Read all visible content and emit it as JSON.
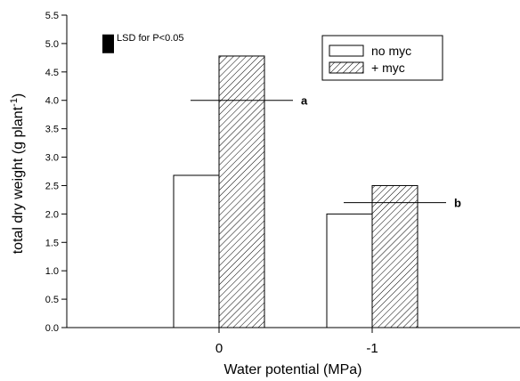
{
  "chart_data": {
    "type": "bar",
    "categories": [
      "0",
      "-1"
    ],
    "series": [
      {
        "name": "no myc",
        "values": [
          2.68,
          2.0
        ],
        "fill": "open"
      },
      {
        "name": "+ myc",
        "values": [
          4.78,
          2.5
        ],
        "fill": "hatched"
      }
    ],
    "xlabel": "Water potential  (MPa)",
    "ylabel_main": "total dry weight (g plant",
    "ylabel_sup": "-1",
    "ylabel_close": ")",
    "ylim": [
      0,
      5.5
    ],
    "yticks": [
      "0.0",
      "0.5",
      "1.0",
      "1.5",
      "2.0",
      "2.5",
      "3.0",
      "3.5",
      "4.0",
      "4.5",
      "5.0",
      "5.5"
    ],
    "lsd": {
      "label": "LSD for P<0.05",
      "value": 0.33,
      "top": 5.16
    },
    "annotations": [
      {
        "text": "a",
        "y": 4.0,
        "category_index": 0
      },
      {
        "text": "b",
        "y": 2.2,
        "category_index": 1
      }
    ],
    "legend": {
      "placement": "top-right"
    },
    "grid": false,
    "colors": {
      "ink": "#000000",
      "background": "#ffffff"
    }
  }
}
